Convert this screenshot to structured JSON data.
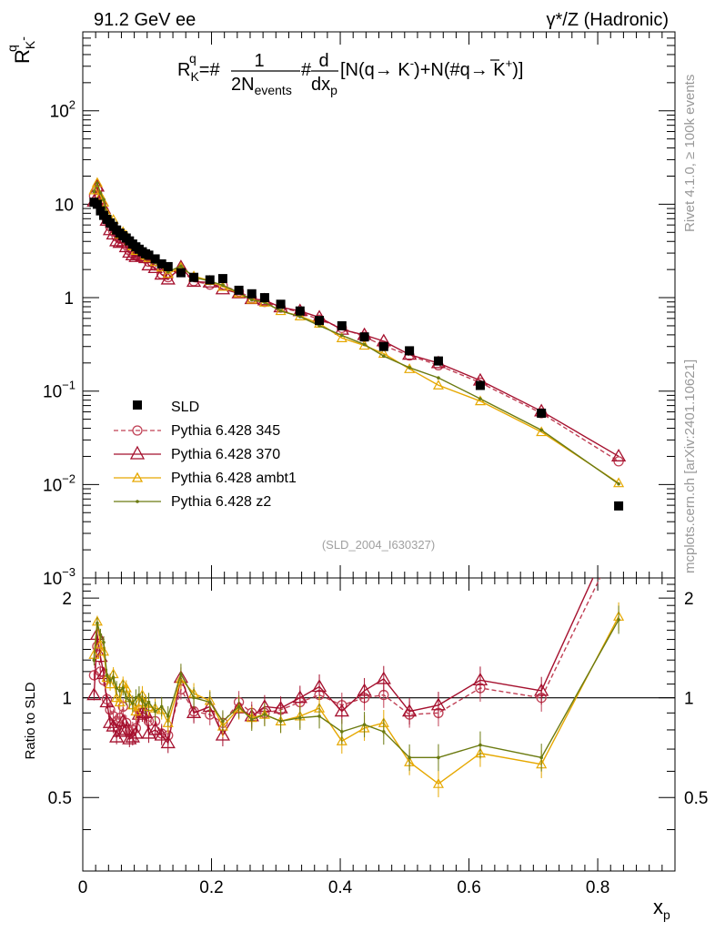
{
  "header": {
    "energy": "91.2 GeV ee",
    "process": "γ*/Z (Hadronic)"
  },
  "side": {
    "rivet": "Rivet 4.1.0, ≥ 100k events",
    "source": "mcplots.cern.ch [arXiv:2401.10621]"
  },
  "chart_data": {
    "type": "line",
    "title": "R_K^q = #(1/2N_events)#(d/dx_p)[N(q→K⁻)+N(#q̄→K⁺)]",
    "formula": {
      "lhs": "R",
      "lhs_sub": "K",
      "lhs_sup": "q",
      "eq": "=#",
      "num": "1",
      "den": "2N",
      "den_sub": "events",
      "mid": "#",
      "dnum": "d",
      "dden": "dx",
      "dden_sub": "p",
      "bracket": "[N(q→  K",
      "bracket_sup1": "-",
      "bracket_mid": ")+N(#",
      "qbar": "q",
      "bracket_mid2": "→  K",
      "bracket_sup2": "+",
      "bracket_end": ")]"
    },
    "ylabel": {
      "base": "R",
      "sub": "K",
      "sup": "q",
      "sup2": "-"
    },
    "xlabel": {
      "base": "x",
      "sub": "p"
    },
    "ratio_ylabel": "Ratio to SLD",
    "watermark": "(SLD_2004_I630327)",
    "xlim": [
      0,
      0.92
    ],
    "ylim": [
      0.001,
      700
    ],
    "ratio_ylim": [
      0.3,
      2.3
    ],
    "x_ticks": [
      "0",
      "0.2",
      "0.4",
      "0.6",
      "0.8"
    ],
    "y_ticks": [
      "10^-3",
      "10^-2",
      "10^-1",
      "1",
      "10",
      "10^2"
    ],
    "y_tick_labels": {
      "e_m3": {
        "base": "10",
        "exp": "−3"
      },
      "e_m2": {
        "base": "10",
        "exp": "−2"
      },
      "e_m1": {
        "base": "10",
        "exp": "−1"
      },
      "one": "1",
      "ten": "10",
      "e_2": {
        "base": "10",
        "exp": "2"
      }
    },
    "ratio_ticks": [
      "0.5",
      "1",
      "2"
    ],
    "legend": [
      "SLD",
      "Pythia 6.428 345",
      "Pythia 6.428 370",
      "Pythia 6.428 ambt1",
      "Pythia 6.428 z2"
    ],
    "x": [
      0.0175,
      0.0225,
      0.0275,
      0.0325,
      0.0375,
      0.0425,
      0.0475,
      0.0525,
      0.0575,
      0.0625,
      0.0675,
      0.0725,
      0.0775,
      0.0825,
      0.0875,
      0.0925,
      0.0975,
      0.1025,
      0.1125,
      0.1225,
      0.1325,
      0.1525,
      0.1725,
      0.1975,
      0.2175,
      0.2425,
      0.2625,
      0.2825,
      0.3075,
      0.3375,
      0.3675,
      0.4025,
      0.4375,
      0.4675,
      0.5075,
      0.5525,
      0.6175,
      0.7125,
      0.8325
    ],
    "series": [
      {
        "name": "SLD",
        "color": "#000000",
        "marker": "square",
        "values": [
          10.5,
          10.0,
          8.5,
          7.6,
          6.9,
          6.3,
          5.8,
          5.3,
          4.9,
          4.6,
          4.35,
          4.05,
          3.75,
          3.5,
          3.3,
          3.1,
          2.95,
          2.85,
          2.6,
          2.3,
          2.15,
          1.85,
          1.65,
          1.55,
          1.6,
          1.2,
          1.1,
          1.0,
          0.85,
          0.72,
          0.57,
          0.5,
          0.38,
          0.3,
          0.27,
          0.21,
          0.115,
          0.058,
          0.0059
        ]
      },
      {
        "name": "Pythia 6.428 345",
        "color": "#c04055",
        "marker": "circle",
        "dashed": true,
        "ratio": [
          1.17,
          1.43,
          1.2,
          1.13,
          0.99,
          0.92,
          0.88,
          0.85,
          0.87,
          0.94,
          0.84,
          0.79,
          0.8,
          0.81,
          0.92,
          0.9,
          0.89,
          0.85,
          0.85,
          0.78,
          0.77,
          1.06,
          0.91,
          0.89,
          0.84,
          0.97,
          0.9,
          0.9,
          0.92,
          0.97,
          1.02,
          0.95,
          1.0,
          1.02,
          0.89,
          0.9,
          1.07,
          1.0,
          3.0
        ]
      },
      {
        "name": "Pythia 6.428 370",
        "color": "#a5102e",
        "marker": "triangle",
        "ratio": [
          1.02,
          1.55,
          1.33,
          1.18,
          0.97,
          0.84,
          0.82,
          0.76,
          0.79,
          0.85,
          0.8,
          0.75,
          0.76,
          0.78,
          0.89,
          0.9,
          0.9,
          0.78,
          0.8,
          0.77,
          0.73,
          1.15,
          0.9,
          0.94,
          0.77,
          0.93,
          0.88,
          0.94,
          0.93,
          1.0,
          1.08,
          0.91,
          1.05,
          1.14,
          0.91,
          0.95,
          1.13,
          1.05,
          3.4
        ]
      },
      {
        "name": "Pythia 6.428 ambt1",
        "color": "#e6a800",
        "marker": "triangle-small",
        "ratio": [
          1.35,
          1.7,
          1.45,
          1.38,
          1.15,
          1.1,
          1.18,
          1.0,
          0.97,
          1.1,
          1.07,
          1.0,
          0.95,
          0.91,
          0.97,
          1.02,
          0.96,
          0.94,
          0.93,
          0.92,
          0.84,
          1.14,
          1.03,
          0.98,
          0.82,
          0.93,
          0.87,
          0.89,
          0.85,
          0.88,
          0.93,
          0.74,
          0.81,
          0.84,
          0.64,
          0.55,
          0.68,
          0.63,
          1.76
        ]
      },
      {
        "name": "Pythia 6.428 z2",
        "color": "#6b7a10",
        "marker": "dot",
        "ratio": [
          1.3,
          1.68,
          1.55,
          1.47,
          1.17,
          1.13,
          1.15,
          1.07,
          1.05,
          1.07,
          1.0,
          0.98,
          0.96,
          1.0,
          1.02,
          0.98,
          0.95,
          0.97,
          0.91,
          0.94,
          0.88,
          1.18,
          1.0,
          0.97,
          0.85,
          0.94,
          0.86,
          0.89,
          0.85,
          0.87,
          0.88,
          0.79,
          0.83,
          0.79,
          0.66,
          0.66,
          0.72,
          0.66,
          1.72
        ]
      }
    ]
  }
}
